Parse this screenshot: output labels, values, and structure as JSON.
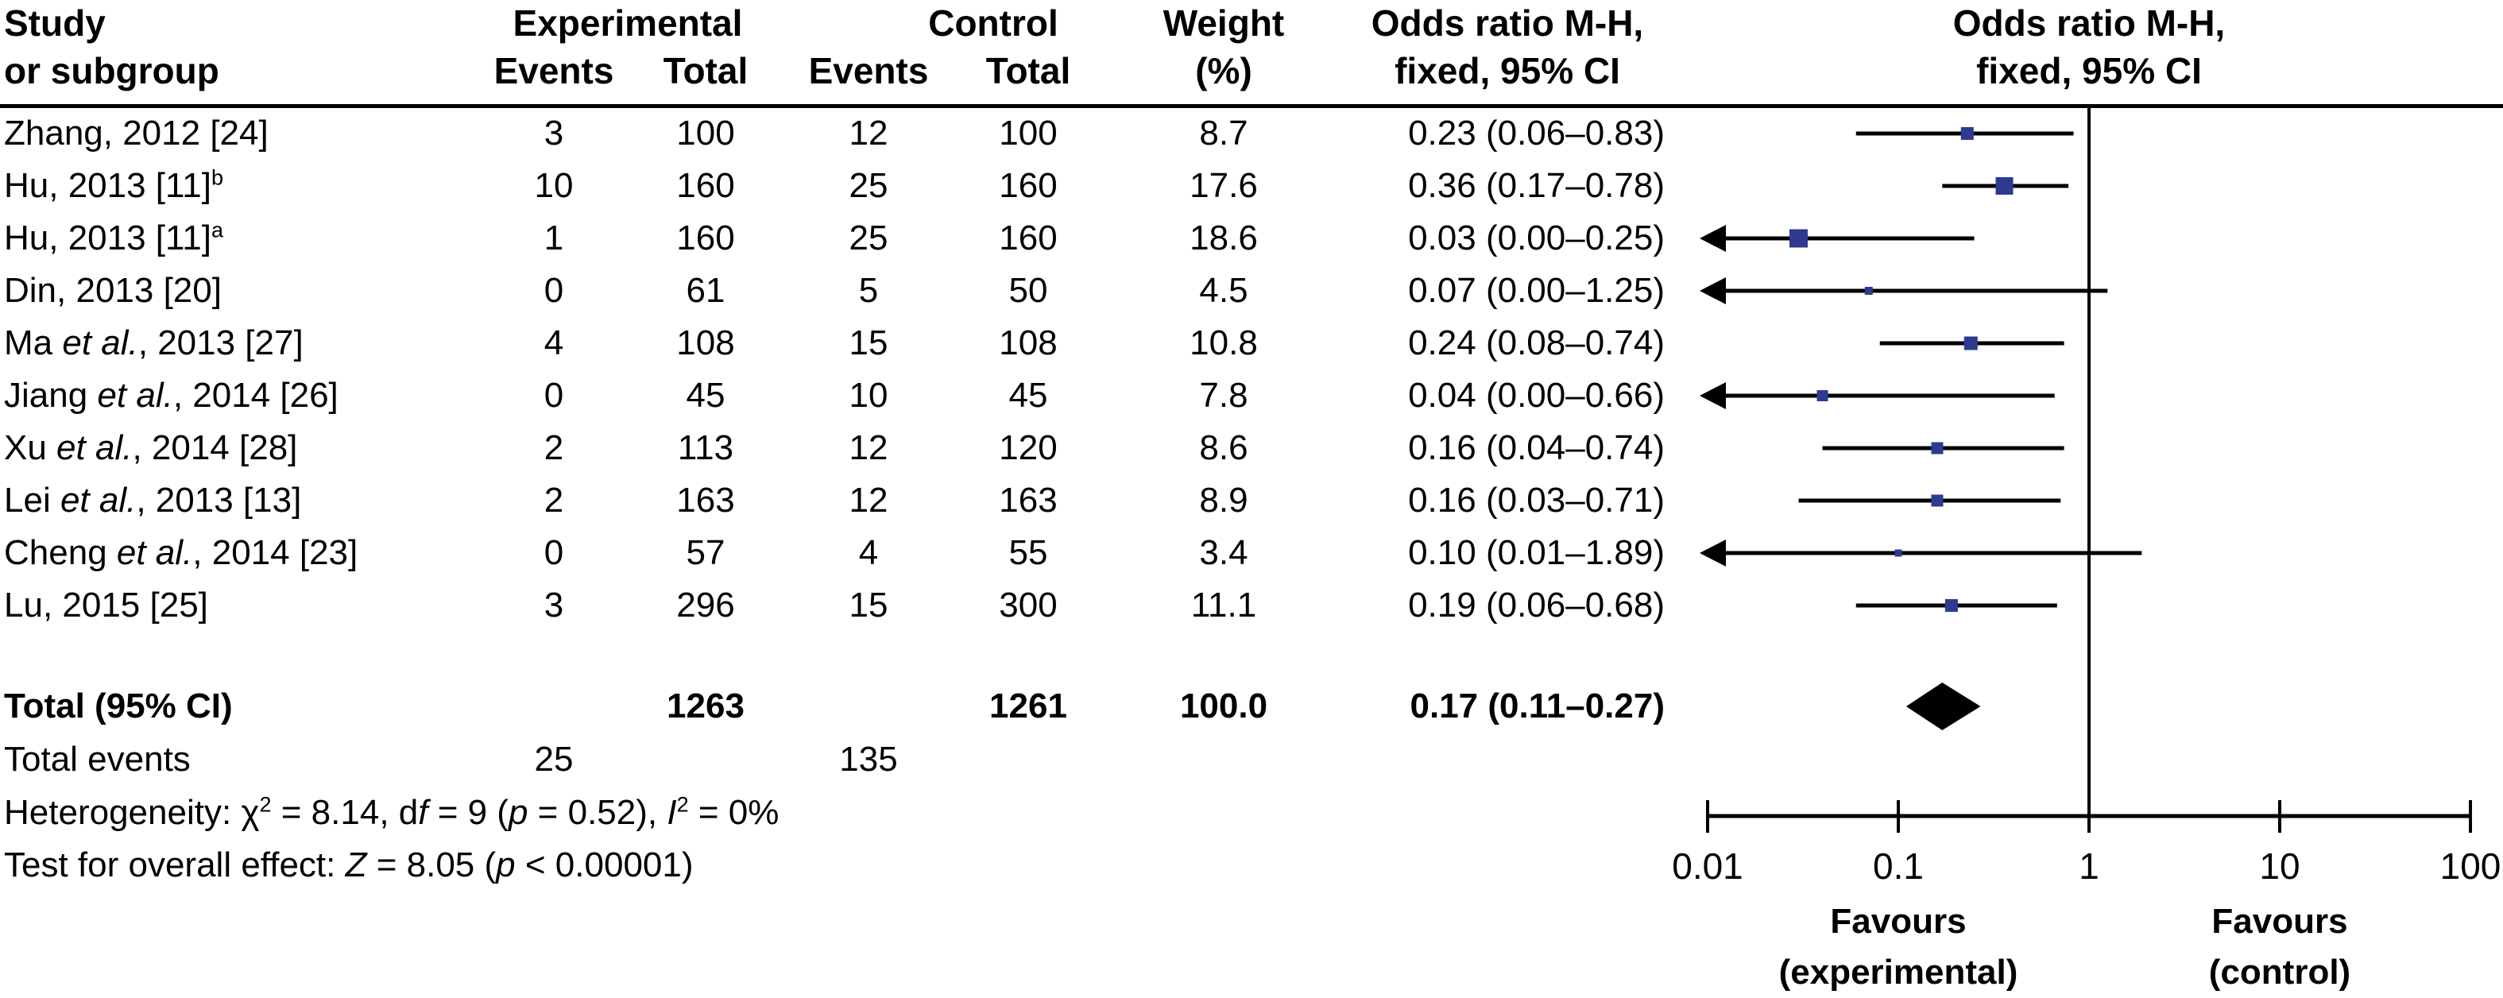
{
  "header": {
    "study_line1": "Study",
    "study_line2": "or subgroup",
    "experimental": "Experimental",
    "control": "Control",
    "events": "Events",
    "total": "Total",
    "weight_line1": "Weight",
    "weight_line2": "(%)",
    "or_col_line1": "Odds ratio M-H,",
    "or_col_line2": "fixed, 95% CI",
    "plot_col_line1": "Odds ratio M-H,",
    "plot_col_line2": "fixed, 95% CI"
  },
  "studies": [
    {
      "segments": [
        {
          "text": "Zhang, 2012 [24]"
        }
      ],
      "exp_events": "3",
      "exp_total": "100",
      "ctrl_events": "12",
      "ctrl_total": "100",
      "weight": "8.7",
      "or_ci": "0.23 (0.06–0.83)",
      "or": 0.23,
      "ci_low": 0.06,
      "ci_high": 0.83,
      "arrow_low": false,
      "marker_size": 16
    },
    {
      "segments": [
        {
          "text": "Hu, 2013 [11]"
        },
        {
          "text": "b",
          "sup": true
        }
      ],
      "exp_events": "10",
      "exp_total": "160",
      "ctrl_events": "25",
      "ctrl_total": "160",
      "weight": "17.6",
      "or_ci": "0.36 (0.17–0.78)",
      "or": 0.36,
      "ci_low": 0.17,
      "ci_high": 0.78,
      "arrow_low": false,
      "marker_size": 22
    },
    {
      "segments": [
        {
          "text": "Hu, 2013 [11]"
        },
        {
          "text": "a",
          "sup": true
        }
      ],
      "exp_events": "1",
      "exp_total": "160",
      "ctrl_events": "25",
      "ctrl_total": "160",
      "weight": "18.6",
      "or_ci": "0.03 (0.00–0.25)",
      "or": 0.03,
      "ci_low": 0.003,
      "ci_high": 0.25,
      "arrow_low": true,
      "marker_size": 23
    },
    {
      "segments": [
        {
          "text": "Din, 2013 [20]"
        }
      ],
      "exp_events": "0",
      "exp_total": "61",
      "ctrl_events": "5",
      "ctrl_total": "50",
      "weight": "4.5",
      "or_ci": "0.07 (0.00–1.25)",
      "or": 0.07,
      "ci_low": 0.004,
      "ci_high": 1.25,
      "arrow_low": true,
      "marker_size": 10
    },
    {
      "segments": [
        {
          "text": "Ma "
        },
        {
          "text": "et al.",
          "italic": true
        },
        {
          "text": ", 2013 [27]"
        }
      ],
      "exp_events": "4",
      "exp_total": "108",
      "ctrl_events": "15",
      "ctrl_total": "108",
      "weight": "10.8",
      "or_ci": "0.24 (0.08–0.74)",
      "or": 0.24,
      "ci_low": 0.08,
      "ci_high": 0.74,
      "arrow_low": false,
      "marker_size": 17
    },
    {
      "segments": [
        {
          "text": "Jiang "
        },
        {
          "text": "et al.",
          "italic": true
        },
        {
          "text": ", 2014 [26]"
        }
      ],
      "exp_events": "0",
      "exp_total": "45",
      "ctrl_events": "10",
      "ctrl_total": "45",
      "weight": "7.8",
      "or_ci": "0.04 (0.00–0.66)",
      "or": 0.04,
      "ci_low": 0.002,
      "ci_high": 0.66,
      "arrow_low": true,
      "marker_size": 14
    },
    {
      "segments": [
        {
          "text": "Xu "
        },
        {
          "text": "et al.",
          "italic": true
        },
        {
          "text": ", 2014 [28]"
        }
      ],
      "exp_events": "2",
      "exp_total": "113",
      "ctrl_events": "12",
      "ctrl_total": "120",
      "weight": "8.6",
      "or_ci": "0.16 (0.04–0.74)",
      "or": 0.16,
      "ci_low": 0.04,
      "ci_high": 0.74,
      "arrow_low": false,
      "marker_size": 15
    },
    {
      "segments": [
        {
          "text": "Lei "
        },
        {
          "text": "et al.",
          "italic": true
        },
        {
          "text": ", 2013 [13]"
        }
      ],
      "exp_events": "2",
      "exp_total": "163",
      "ctrl_events": "12",
      "ctrl_total": "163",
      "weight": "8.9",
      "or_ci": "0.16 (0.03–0.71)",
      "or": 0.16,
      "ci_low": 0.03,
      "ci_high": 0.71,
      "arrow_low": false,
      "marker_size": 15
    },
    {
      "segments": [
        {
          "text": "Cheng "
        },
        {
          "text": "et al.",
          "italic": true
        },
        {
          "text": ", 2014 [23]"
        }
      ],
      "exp_events": "0",
      "exp_total": "57",
      "ctrl_events": "4",
      "ctrl_total": "55",
      "weight": "3.4",
      "or_ci": "0.10 (0.01–1.89)",
      "or": 0.1,
      "ci_low": 0.01,
      "ci_high": 1.89,
      "arrow_low": true,
      "marker_size": 9
    },
    {
      "segments": [
        {
          "text": "Lu, 2015 [25]"
        }
      ],
      "exp_events": "3",
      "exp_total": "296",
      "ctrl_events": "15",
      "ctrl_total": "300",
      "weight": "11.1",
      "or_ci": "0.19 (0.06–0.68)",
      "or": 0.19,
      "ci_low": 0.06,
      "ci_high": 0.68,
      "arrow_low": false,
      "marker_size": 16
    }
  ],
  "totals": {
    "label": "Total (95% CI)",
    "exp_total": "1263",
    "ctrl_total": "1261",
    "weight": "100.0",
    "or_ci": "0.17 (0.11–0.27)",
    "or": 0.17,
    "ci_low": 0.11,
    "ci_high": 0.27
  },
  "total_events": {
    "label": "Total events",
    "exp": "25",
    "ctrl": "135"
  },
  "heterogeneity_segments": [
    {
      "text": "Heterogeneity: χ"
    },
    {
      "text": "2",
      "sup": true
    },
    {
      "text": " = 8.14, d"
    },
    {
      "text": "f",
      "italic": true
    },
    {
      "text": " = 9 ("
    },
    {
      "text": "p",
      "italic": true
    },
    {
      "text": " = 0.52), "
    },
    {
      "text": "I",
      "italic": true
    },
    {
      "text": "2",
      "sup": true
    },
    {
      "text": " = 0%"
    }
  ],
  "overall_effect_segments": [
    {
      "text": "Test for overall effect: "
    },
    {
      "text": "Z",
      "italic": true
    },
    {
      "text": " = 8.05 ("
    },
    {
      "text": "p",
      "italic": true
    },
    {
      "text": " < 0.00001)"
    }
  ],
  "axis": {
    "ticks": [
      {
        "value": 0.01,
        "label": "0.01"
      },
      {
        "value": 0.1,
        "label": "0.1"
      },
      {
        "value": 1,
        "label": "1"
      },
      {
        "value": 10,
        "label": "10"
      },
      {
        "value": 100,
        "label": "100"
      }
    ],
    "favours_left_line1": "Favours",
    "favours_left_line2": "(experimental)",
    "favours_right_line1": "Favours",
    "favours_right_line2": "(control)"
  },
  "colors": {
    "marker": "#2e3a8f",
    "diamond": "#000000",
    "line": "#000000",
    "text": "#000000"
  },
  "chart_data": {
    "type": "scatter",
    "subtype": "forest_plot_meta_analysis",
    "title": "Odds ratio M-H, fixed, 95% CI",
    "x_scale": "log",
    "xlim": [
      0.01,
      100
    ],
    "x_ticks": [
      0.01,
      0.1,
      1,
      10,
      100
    ],
    "reference_line_x": 1,
    "xlabel_left": "Favours (experimental)",
    "xlabel_right": "Favours (control)",
    "series": [
      {
        "name": "Zhang, 2012 [24]",
        "exp_events": 3,
        "exp_total": 100,
        "ctrl_events": 12,
        "ctrl_total": 100,
        "weight_pct": 8.7,
        "or": 0.23,
        "ci": [
          0.06,
          0.83
        ]
      },
      {
        "name": "Hu, 2013 [11]b",
        "exp_events": 10,
        "exp_total": 160,
        "ctrl_events": 25,
        "ctrl_total": 160,
        "weight_pct": 17.6,
        "or": 0.36,
        "ci": [
          0.17,
          0.78
        ]
      },
      {
        "name": "Hu, 2013 [11]a",
        "exp_events": 1,
        "exp_total": 160,
        "ctrl_events": 25,
        "ctrl_total": 160,
        "weight_pct": 18.6,
        "or": 0.03,
        "ci": [
          0.0,
          0.25
        ]
      },
      {
        "name": "Din, 2013 [20]",
        "exp_events": 0,
        "exp_total": 61,
        "ctrl_events": 5,
        "ctrl_total": 50,
        "weight_pct": 4.5,
        "or": 0.07,
        "ci": [
          0.0,
          1.25
        ]
      },
      {
        "name": "Ma et al., 2013 [27]",
        "exp_events": 4,
        "exp_total": 108,
        "ctrl_events": 15,
        "ctrl_total": 108,
        "weight_pct": 10.8,
        "or": 0.24,
        "ci": [
          0.08,
          0.74
        ]
      },
      {
        "name": "Jiang et al., 2014 [26]",
        "exp_events": 0,
        "exp_total": 45,
        "ctrl_events": 10,
        "ctrl_total": 45,
        "weight_pct": 7.8,
        "or": 0.04,
        "ci": [
          0.0,
          0.66
        ]
      },
      {
        "name": "Xu et al., 2014 [28]",
        "exp_events": 2,
        "exp_total": 113,
        "ctrl_events": 12,
        "ctrl_total": 120,
        "weight_pct": 8.6,
        "or": 0.16,
        "ci": [
          0.04,
          0.74
        ]
      },
      {
        "name": "Lei et al., 2013 [13]",
        "exp_events": 2,
        "exp_total": 163,
        "ctrl_events": 12,
        "ctrl_total": 163,
        "weight_pct": 8.9,
        "or": 0.16,
        "ci": [
          0.03,
          0.71
        ]
      },
      {
        "name": "Cheng et al., 2014 [23]",
        "exp_events": 0,
        "exp_total": 57,
        "ctrl_events": 4,
        "ctrl_total": 55,
        "weight_pct": 3.4,
        "or": 0.1,
        "ci": [
          0.01,
          1.89
        ]
      },
      {
        "name": "Lu, 2015 [25]",
        "exp_events": 3,
        "exp_total": 296,
        "ctrl_events": 15,
        "ctrl_total": 300,
        "weight_pct": 11.1,
        "or": 0.19,
        "ci": [
          0.06,
          0.68
        ]
      }
    ],
    "total": {
      "name": "Total (95% CI)",
      "exp_total": 1263,
      "ctrl_total": 1261,
      "weight_pct": 100.0,
      "or": 0.17,
      "ci": [
        0.11,
        0.27
      ],
      "total_events_exp": 25,
      "total_events_ctrl": 135
    },
    "heterogeneity": "Heterogeneity: χ2 = 8.14, df = 9 (p = 0.52), I2 = 0%",
    "overall_effect": "Test for overall effect: Z = 8.05 (p < 0.00001)"
  }
}
